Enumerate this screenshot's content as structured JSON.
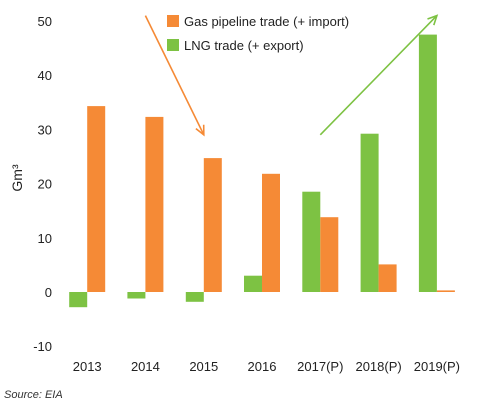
{
  "chart_data": {
    "type": "bar",
    "title": "",
    "xlabel": "",
    "ylabel": "Gm³",
    "ylim": [
      -10,
      50
    ],
    "yticks": [
      -10,
      0,
      10,
      20,
      30,
      40,
      50
    ],
    "grid": false,
    "legend_position": "top",
    "categories": [
      "2013",
      "2014",
      "2015",
      "2016",
      "2017(P)",
      "2018(P)",
      "2019(P)"
    ],
    "series": [
      {
        "name": "LNG trade (+ export)",
        "color": "#7dc243",
        "values": [
          -2.8,
          -1.2,
          -1.8,
          3.0,
          18.5,
          29.2,
          47.5
        ]
      },
      {
        "name": "Gas pipeline trade (+ import)",
        "color": "#f58a36",
        "values": [
          34.3,
          32.3,
          24.7,
          21.8,
          13.8,
          5.1,
          0.3
        ]
      }
    ],
    "annotations": [
      {
        "type": "arrow",
        "color": "#f58a36",
        "direction": "down",
        "from": {
          "x": "2014",
          "y": 51
        },
        "to": {
          "x": "2015",
          "y": 29
        }
      },
      {
        "type": "arrow",
        "color": "#7dc243",
        "direction": "up",
        "from": {
          "x": "2017(P)",
          "y": 29
        },
        "to": {
          "x": "2019(P)",
          "y": 51
        }
      }
    ]
  },
  "source": "Source: EIA"
}
